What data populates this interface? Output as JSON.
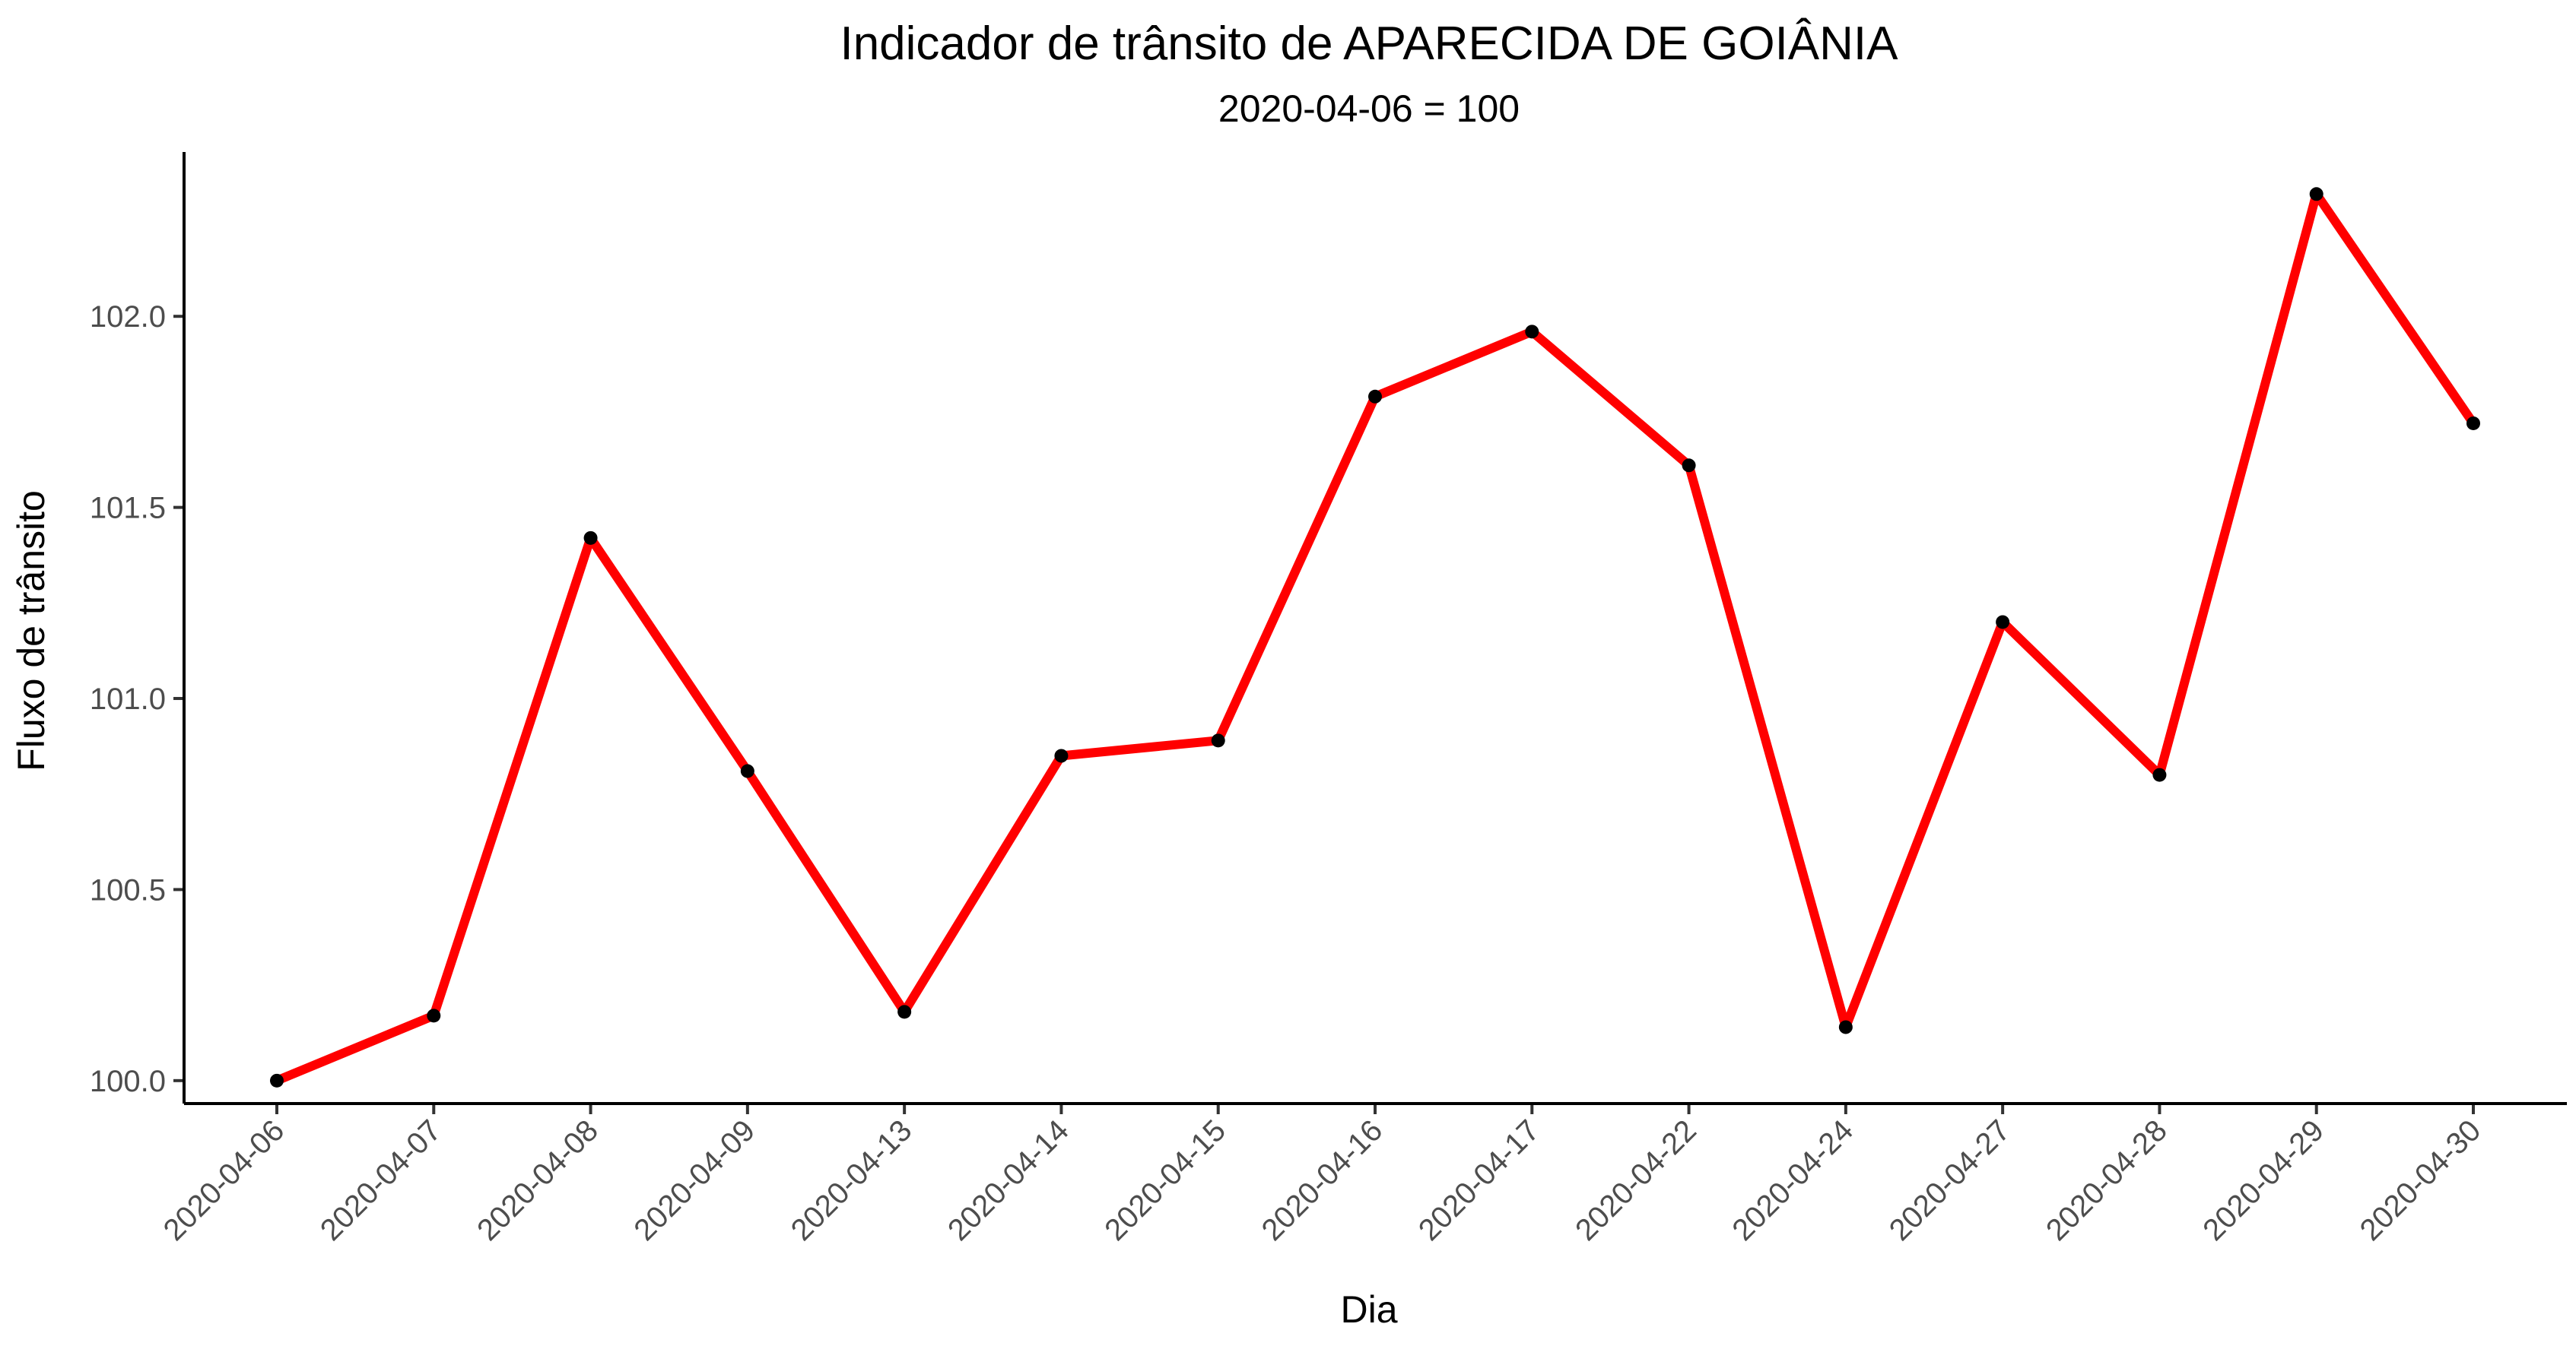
{
  "colors": {
    "line": "#ff0000",
    "point": "#000000",
    "background": "#ffffff"
  },
  "chart_data": {
    "type": "line",
    "title": "Indicador de trânsito de APARECIDA DE GOIÂNIA",
    "subtitle": "2020-04-06 = 100",
    "xlabel": "Dia",
    "ylabel": "Fluxo de trânsito",
    "categories": [
      "2020-04-06",
      "2020-04-07",
      "2020-04-08",
      "2020-04-09",
      "2020-04-13",
      "2020-04-14",
      "2020-04-15",
      "2020-04-16",
      "2020-04-17",
      "2020-04-22",
      "2020-04-24",
      "2020-04-27",
      "2020-04-28",
      "2020-04-29",
      "2020-04-30"
    ],
    "values": [
      100.0,
      100.17,
      101.42,
      100.81,
      100.18,
      100.85,
      100.89,
      101.79,
      101.96,
      101.61,
      100.14,
      101.2,
      100.8,
      102.32,
      101.72
    ],
    "ylim": [
      99.94,
      102.43
    ],
    "yticks": [
      100.0,
      100.5,
      101.0,
      101.5,
      102.0
    ],
    "ytick_labels": [
      "100.0",
      "100.5",
      "101.0",
      "101.5",
      "102.0"
    ],
    "grid": false,
    "legend": "none"
  }
}
